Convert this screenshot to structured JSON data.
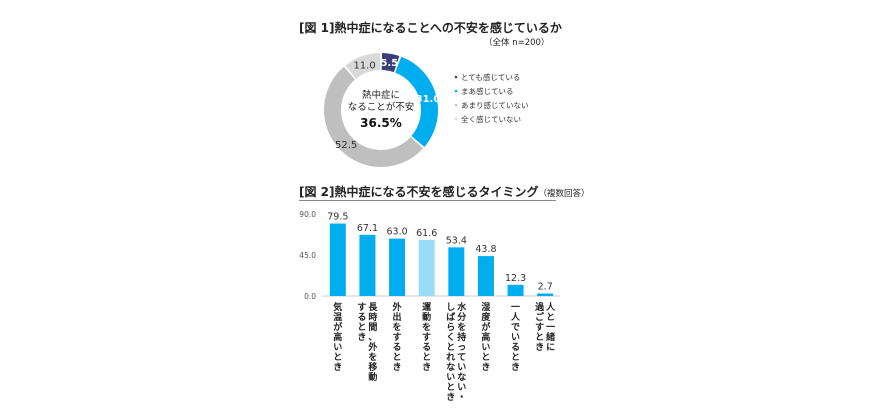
{
  "chart_data": [
    {
      "type": "pie",
      "title": "[図 1]熱中症になることへの不安を感じているか",
      "subtitle": "（全体 n=200）",
      "center_text": [
        "熱中症に",
        "なることが不安",
        "36.5%"
      ],
      "categories": [
        "とても感じている",
        "まあ感じている",
        "あまり感じていない",
        "全く感じていない"
      ],
      "values": [
        5.5,
        31.0,
        52.5,
        11.0
      ],
      "value_labels": [
        "5.5",
        "31.0",
        "52.5",
        "11.0"
      ],
      "colors": [
        "#3b3f7c",
        "#00adee",
        "#bfbfbf",
        "#d9d9d9"
      ],
      "legend_position": "right"
    },
    {
      "type": "bar",
      "title": "[図 2]熱中症になる不安を感じるタイミング（複数回答）",
      "categories": [
        [
          "気温が高いとき"
        ],
        [
          "長時間、外を移動",
          "するとき"
        ],
        [
          "外出をするとき"
        ],
        [
          "運動をするとき"
        ],
        [
          "水分を持っていない・",
          "しばらくとれないとき"
        ],
        [
          "湿度が高いとき"
        ],
        [
          "一人でいるとき"
        ],
        [
          "人と一緒に",
          "過ごすとき"
        ]
      ],
      "values": [
        79.5,
        67.1,
        63.0,
        61.6,
        53.4,
        43.8,
        12.3,
        2.7
      ],
      "value_labels": [
        "79.5",
        "67.1",
        "63.0",
        "61.6",
        "53.4",
        "43.8",
        "12.3",
        "2.7"
      ],
      "bar_colors": [
        "#00adee",
        "#00adee",
        "#00adee",
        "#99dcf7",
        "#00adee",
        "#00adee",
        "#00adee",
        "#00adee"
      ],
      "yticks": [
        "90.0",
        "45.0",
        "0.0"
      ],
      "ylim": [
        0,
        90
      ]
    }
  ]
}
